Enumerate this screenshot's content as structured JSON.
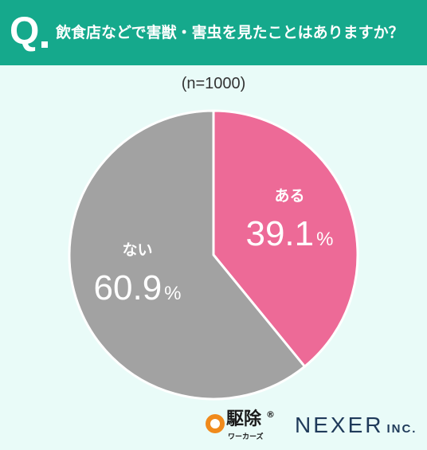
{
  "header": {
    "q_mark": "Q",
    "question": "飲食店などで害獣・害虫を見たことはありますか？"
  },
  "sample_label": "(n=1000)",
  "chart_data": {
    "type": "pie",
    "categories": [
      "ある",
      "ない"
    ],
    "values": [
      39.1,
      60.9
    ],
    "value_labels": [
      "39.1",
      "60.9"
    ],
    "unit": "%",
    "colors": [
      "#ed6a97",
      "#a2a2a2"
    ],
    "start": "12 o'clock, clockwise",
    "legend": "labels on slices"
  },
  "footer": {
    "logo_main": "駆除",
    "logo_reg": "®",
    "logo_sub": "ワーカーズ",
    "company": "NEXER",
    "company_suffix": "INC."
  }
}
